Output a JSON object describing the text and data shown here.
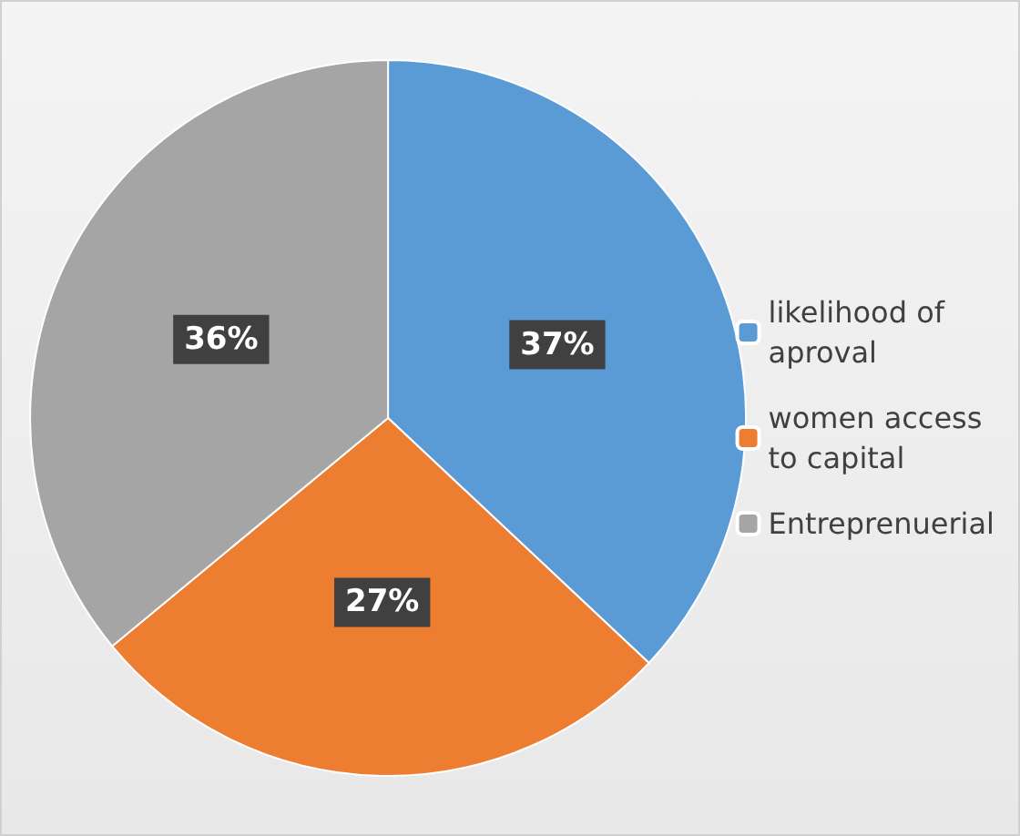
{
  "chart_data": {
    "type": "pie",
    "categories": [
      "likelihood of\naproval",
      "women access\nto capital",
      "Entreprenuerial"
    ],
    "values": [
      37,
      27,
      36
    ],
    "colors": [
      "#5b9bd5",
      "#ed7d31",
      "#a5a5a5"
    ],
    "value_labels": [
      "37%",
      "27%",
      "36%"
    ],
    "legend": "right"
  }
}
